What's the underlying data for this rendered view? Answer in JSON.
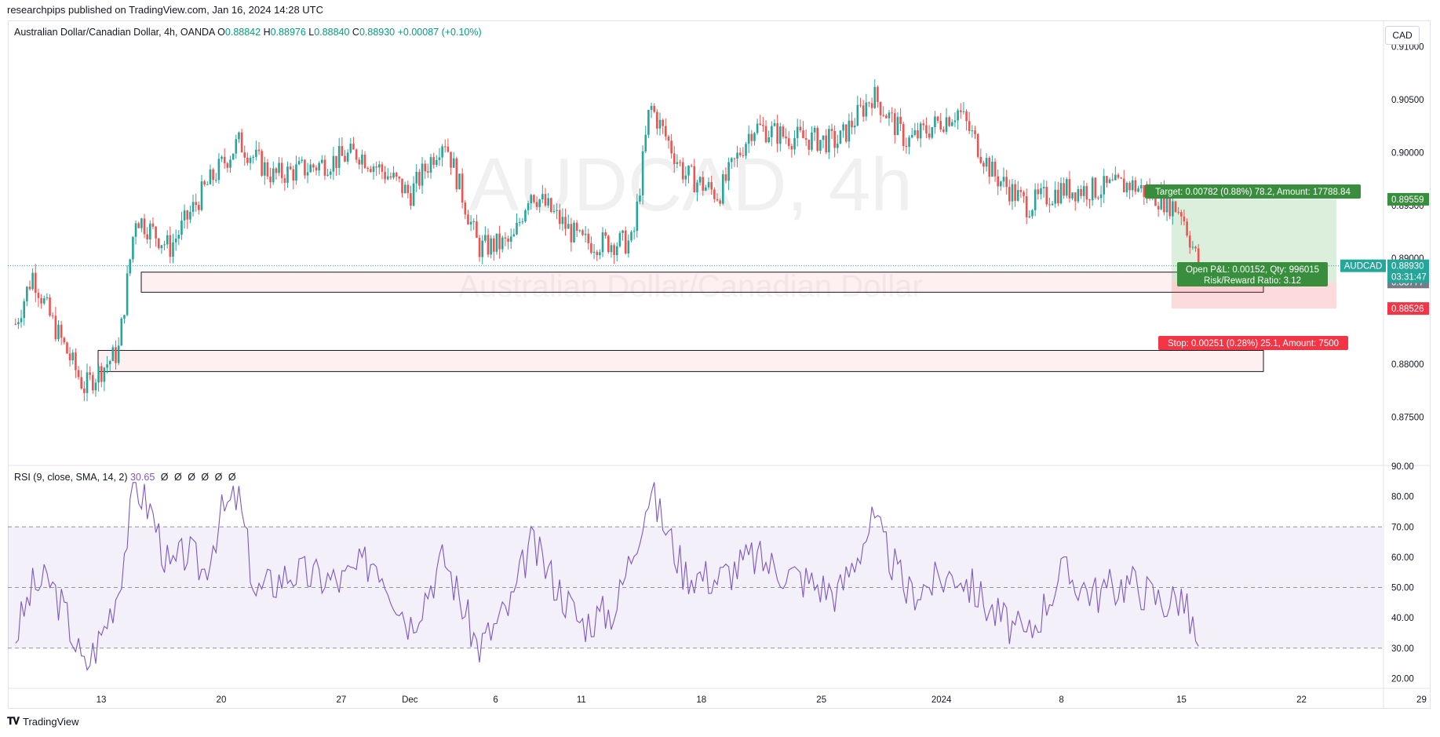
{
  "header": {
    "published": "researchpips published on TradingView.com, Jan 16, 2024 14:28 UTC"
  },
  "legend": {
    "symbol": "Australian Dollar/Canadian Dollar, 4h, OANDA",
    "o_label": "O",
    "o": "0.88842",
    "h_label": "H",
    "h": "0.88976",
    "l_label": "L",
    "l": "0.88840",
    "c_label": "C",
    "c": "0.88930",
    "change": "+0.00087 (+0.10%)"
  },
  "currency_button": "CAD",
  "watermark": {
    "big": "AUDCAD, 4h",
    "small": "Australian Dollar/Canadian Dollar"
  },
  "price_axis": {
    "ticks": [
      "0.91000",
      "0.90500",
      "0.90000",
      "0.89500",
      "0.89000",
      "0.88500",
      "0.88000",
      "0.87500"
    ]
  },
  "price_labels": {
    "target": "0.89559",
    "symbol": "AUDCAD",
    "last": "0.88930",
    "countdown": "03:31:47",
    "entry": "0.88777",
    "stop": "0.88526"
  },
  "position": {
    "target_text": "Target: 0.00782 (0.88%) 78.2, Amount: 17788.84",
    "pl_line1": "Open P&L: 0.00152, Qty: 996015",
    "pl_line2": "Risk/Reward Ratio: 3.12",
    "stop_text": "Stop: 0.00251 (0.28%) 25.1, Amount: 7500"
  },
  "rsi": {
    "label": "RSI (9, close, SMA, 14, 2)",
    "value": "30.65",
    "extras": [
      "Ø",
      "Ø",
      "Ø",
      "Ø",
      "Ø",
      "Ø"
    ],
    "axis_ticks": [
      "90.00",
      "80.00",
      "70.00",
      "60.00",
      "50.00",
      "40.00",
      "30.00",
      "20.00"
    ]
  },
  "time_axis": {
    "ticks": [
      "13",
      "20",
      "27",
      "Dec",
      "6",
      "11",
      "18",
      "25",
      "2024",
      "8",
      "15",
      "22",
      "29"
    ]
  },
  "footer": {
    "brand": "TradingView"
  },
  "colors": {
    "up": "#26a69a",
    "down": "#ef5350",
    "rsi": "#7e57c2",
    "target_green": "#388e3c",
    "stop_red": "#f23645"
  },
  "chart_data": [
    {
      "type": "candlestick",
      "title": "Australian Dollar/Canadian Dollar, 4h, OANDA",
      "ylim": [
        0.8705,
        0.9125
      ],
      "key_levels": {
        "target": 0.89559,
        "last": 0.8893,
        "entry": 0.88777,
        "stop": 0.88526
      },
      "zones": [
        {
          "from": 0.8868,
          "to": 0.8887
        },
        {
          "from": 0.8793,
          "to": 0.8813
        }
      ],
      "close_path": [
        {
          "x": "Nov 8",
          "y": 0.8838
        },
        {
          "x": "Nov 9",
          "y": 0.8885
        },
        {
          "x": "Nov 10",
          "y": 0.8845
        },
        {
          "x": "Nov 12",
          "y": 0.8778
        },
        {
          "x": "Nov 13",
          "y": 0.8795
        },
        {
          "x": "Nov 14",
          "y": 0.8812
        },
        {
          "x": "Nov 15",
          "y": 0.894
        },
        {
          "x": "Nov 17",
          "y": 0.891
        },
        {
          "x": "Nov 19",
          "y": 0.8965
        },
        {
          "x": "Nov 21",
          "y": 0.901
        },
        {
          "x": "Nov 23",
          "y": 0.8978
        },
        {
          "x": "Nov 25",
          "y": 0.8985
        },
        {
          "x": "Nov 28",
          "y": 0.9
        },
        {
          "x": "Nov 30",
          "y": 0.8975
        },
        {
          "x": "Dec 1",
          "y": 0.896
        },
        {
          "x": "Dec 3",
          "y": 0.9015
        },
        {
          "x": "Dec 5",
          "y": 0.891
        },
        {
          "x": "Dec 7",
          "y": 0.8915
        },
        {
          "x": "Dec 8",
          "y": 0.8965
        },
        {
          "x": "Dec 11",
          "y": 0.8915
        },
        {
          "x": "Dec 14",
          "y": 0.8915
        },
        {
          "x": "Dec 15",
          "y": 0.9045
        },
        {
          "x": "Dec 17",
          "y": 0.898
        },
        {
          "x": "Dec 19",
          "y": 0.896
        },
        {
          "x": "Dec 21",
          "y": 0.9025
        },
        {
          "x": "Dec 23",
          "y": 0.9015
        },
        {
          "x": "Dec 26",
          "y": 0.901
        },
        {
          "x": "Dec 28",
          "y": 0.9055
        },
        {
          "x": "Dec 30",
          "y": 0.901
        },
        {
          "x": "Jan 2",
          "y": 0.904
        },
        {
          "x": "Jan 4",
          "y": 0.898
        },
        {
          "x": "Jan 6",
          "y": 0.895
        },
        {
          "x": "Jan 8",
          "y": 0.8965
        },
        {
          "x": "Jan 10",
          "y": 0.8965
        },
        {
          "x": "Jan 12",
          "y": 0.897
        },
        {
          "x": "Jan 14",
          "y": 0.8955
        },
        {
          "x": "Jan 15",
          "y": 0.8945
        },
        {
          "x": "Jan 16",
          "y": 0.8893
        }
      ]
    },
    {
      "type": "line",
      "title": "RSI (9, close, SMA, 14, 2)",
      "ylim": [
        17,
        90
      ],
      "bands": [
        30,
        50,
        70
      ],
      "series": [
        {
          "name": "RSI",
          "values": [
            {
              "x": "Nov 8",
              "y": 34
            },
            {
              "x": "Nov 9",
              "y": 50
            },
            {
              "x": "Nov 10",
              "y": 52
            },
            {
              "x": "Nov 11",
              "y": 40
            },
            {
              "x": "Nov 12",
              "y": 23
            },
            {
              "x": "Nov 13",
              "y": 34
            },
            {
              "x": "Nov 14",
              "y": 50
            },
            {
              "x": "Nov 15",
              "y": 84
            },
            {
              "x": "Nov 16",
              "y": 74
            },
            {
              "x": "Nov 17",
              "y": 55
            },
            {
              "x": "Nov 18",
              "y": 62
            },
            {
              "x": "Nov 19",
              "y": 55
            },
            {
              "x": "Nov 20",
              "y": 74
            },
            {
              "x": "Nov 21",
              "y": 80
            },
            {
              "x": "Nov 22",
              "y": 48
            },
            {
              "x": "Nov 24",
              "y": 55
            },
            {
              "x": "Nov 27",
              "y": 52
            },
            {
              "x": "Nov 29",
              "y": 60
            },
            {
              "x": "Dec 1",
              "y": 38
            },
            {
              "x": "Dec 3",
              "y": 60
            },
            {
              "x": "Dec 5",
              "y": 30
            },
            {
              "x": "Dec 7",
              "y": 45
            },
            {
              "x": "Dec 8",
              "y": 65
            },
            {
              "x": "Dec 11",
              "y": 38
            },
            {
              "x": "Dec 13",
              "y": 43
            },
            {
              "x": "Dec 15",
              "y": 82
            },
            {
              "x": "Dec 17",
              "y": 55
            },
            {
              "x": "Dec 19",
              "y": 53
            },
            {
              "x": "Dec 21",
              "y": 60
            },
            {
              "x": "Dec 23",
              "y": 55
            },
            {
              "x": "Dec 26",
              "y": 48
            },
            {
              "x": "Dec 28",
              "y": 72
            },
            {
              "x": "Dec 30",
              "y": 48
            },
            {
              "x": "Jan 2",
              "y": 55
            },
            {
              "x": "Jan 4",
              "y": 42
            },
            {
              "x": "Jan 6",
              "y": 33
            },
            {
              "x": "Jan 8",
              "y": 55
            },
            {
              "x": "Jan 10",
              "y": 48
            },
            {
              "x": "Jan 12",
              "y": 52
            },
            {
              "x": "Jan 14",
              "y": 45
            },
            {
              "x": "Jan 15",
              "y": 47
            },
            {
              "x": "Jan 16",
              "y": 30.65
            }
          ]
        }
      ]
    }
  ]
}
